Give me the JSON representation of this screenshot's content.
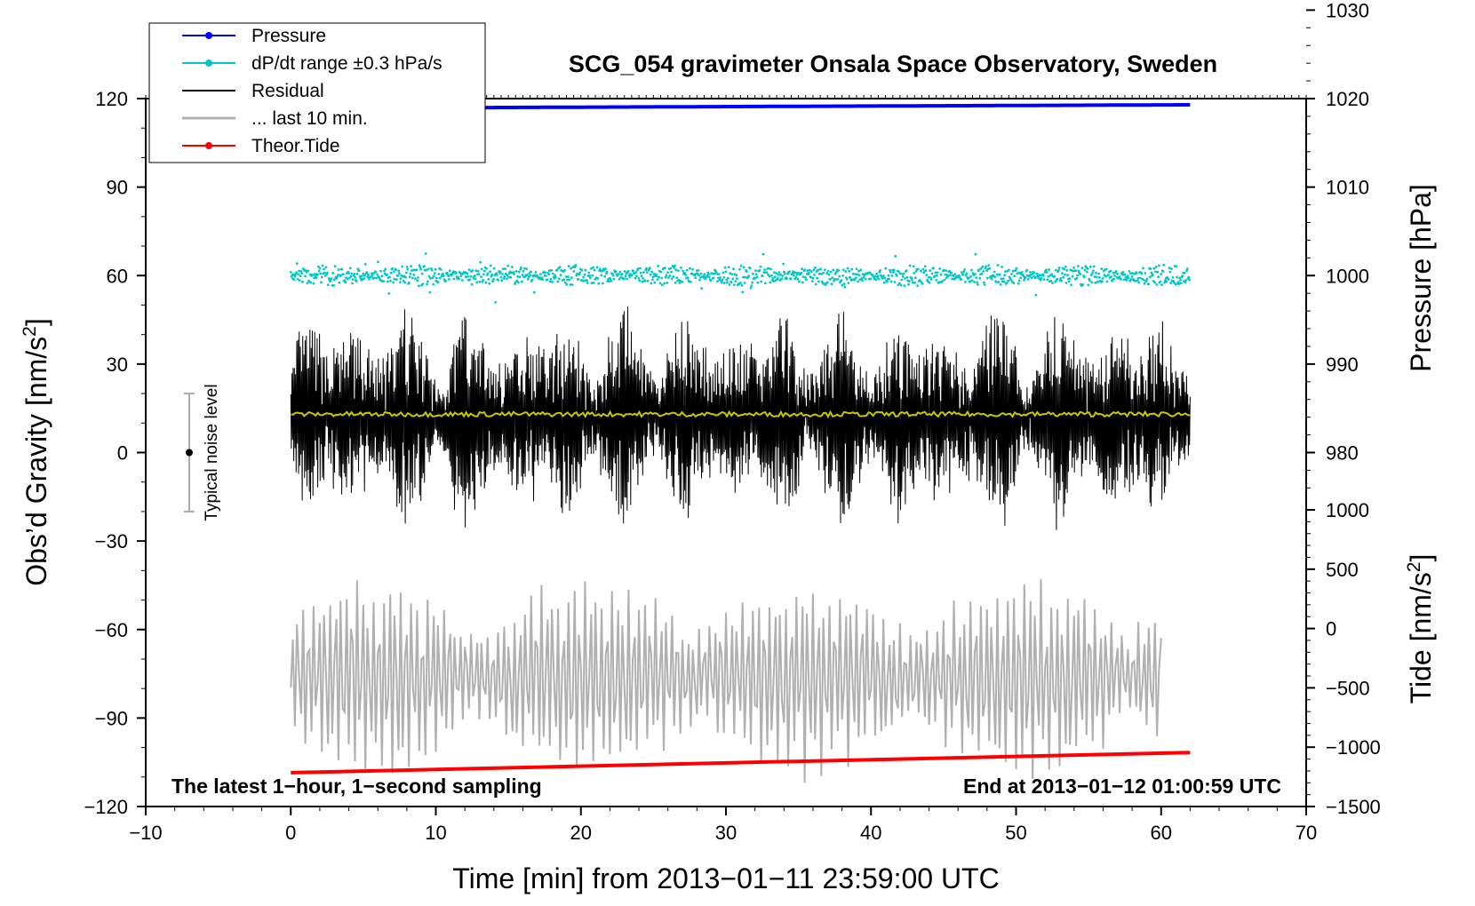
{
  "chart_data": {
    "type": "line",
    "title": "SCG_054 gravimeter Onsala Space Observatory, Sweden",
    "xlabel": "Time [min] from 2013−01−11 23:59:00 UTC",
    "ylabel": "Obs’d Gravity [nm/s",
    "ylabel_sup": "2",
    "ylabel_close": "]",
    "xlim": [
      -10,
      70
    ],
    "ylim": [
      -120,
      120
    ],
    "x_ticks": [
      -10,
      0,
      10,
      20,
      30,
      40,
      50,
      60,
      70
    ],
    "x_tick_labels": [
      "−10",
      "0",
      "10",
      "20",
      "30",
      "40",
      "50",
      "60",
      "70"
    ],
    "y_ticks": [
      -120,
      -90,
      -60,
      -30,
      0,
      30,
      60,
      90,
      120
    ],
    "y_tick_labels": [
      "−120",
      "−90",
      "−60",
      "−30",
      "0",
      "30",
      "60",
      "90",
      "120"
    ],
    "pressure_axis": {
      "label": "Pressure [hPa]",
      "ticks": [
        980,
        990,
        1000,
        1010,
        1020,
        1030
      ],
      "tick_labels": [
        "980",
        "990",
        "1000",
        "1010",
        "1020",
        "1030"
      ],
      "range": [
        970,
        1030
      ]
    },
    "tide_axis": {
      "label": "Tide [nm/s",
      "label_sup": "2",
      "label_close": "]",
      "ticks": [
        -1500,
        -1000,
        -500,
        0,
        500,
        1000
      ],
      "tick_labels": [
        "−1500",
        "−1000",
        "−500",
        "0",
        "500",
        "1000"
      ],
      "range": [
        -1500,
        1000
      ]
    },
    "legend": [
      {
        "label": "Pressure",
        "color": "#0000ff",
        "style": "line-dot"
      },
      {
        "label": "dP/dt range ±0.3 hPa/s",
        "color": "#00c8c8",
        "style": "line-dot"
      },
      {
        "label": "Residual",
        "color": "#000000",
        "style": "line"
      },
      {
        "label": "... last 10 min.",
        "color": "#b0b0b0",
        "style": "line"
      },
      {
        "label": "Theor.Tide",
        "color": "#ff0000",
        "style": "line-dot"
      }
    ],
    "series": [
      {
        "name": "Pressure",
        "color": "#0000ff",
        "axis": "pressure",
        "x": [
          0,
          62
        ],
        "values": [
          1018.9,
          1019.3
        ]
      },
      {
        "name": "dP/dt range ±0.3 hPa/s",
        "color": "#00c8c8",
        "axis": "left",
        "x": [
          0,
          62
        ],
        "center": 60,
        "spread": 3
      },
      {
        "name": "Residual",
        "color": "#000000",
        "axis": "left",
        "x": [
          0,
          62
        ],
        "center": 12,
        "range": [
          -28,
          53
        ]
      },
      {
        "name": "Residual mean",
        "color": "#c8c800",
        "axis": "left",
        "x": [
          0,
          62
        ],
        "values": [
          13,
          13
        ]
      },
      {
        "name": "... last 10 min.",
        "color": "#b0b0b0",
        "axis": "left",
        "x": [
          0,
          60
        ],
        "center": -76,
        "range": [
          -112,
          -33
        ]
      },
      {
        "name": "Theor.Tide",
        "color": "#ff0000",
        "axis": "tide",
        "x": [
          0,
          62
        ],
        "values": [
          -1215,
          -1045
        ]
      }
    ],
    "noise_bar": {
      "label": "Typical noise level",
      "x": -7,
      "center": 0,
      "low": -20,
      "high": 20
    },
    "annotations": {
      "left": "The latest 1−hour, 1−second sampling",
      "right": "End at 2013−01−12 01:00:59 UTC"
    }
  }
}
